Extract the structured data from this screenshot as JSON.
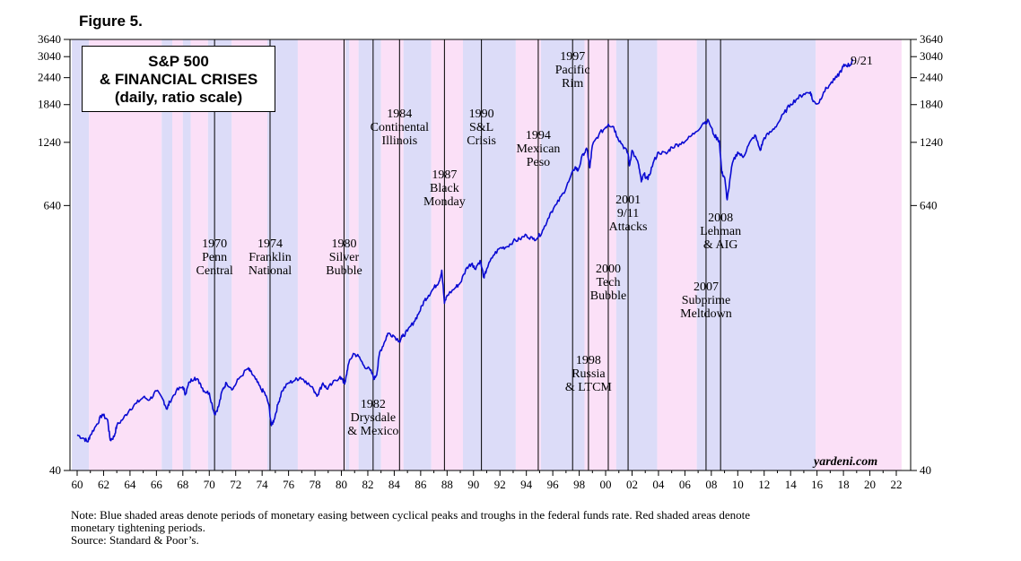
{
  "figure_label": "Figure 5.",
  "title_lines": [
    "S&P 500",
    "& FINANCIAL CRISES",
    "(daily, ratio scale)"
  ],
  "watermark": "yardeni.com",
  "last_label": "9/21",
  "notes": {
    "note_line1": "Note: Blue shaded areas denote periods of monetary easing between cyclical peaks and troughs in the federal funds rate. Red shaded areas denote",
    "note_line2": "monetary tightening periods.",
    "source": "Source: Standard & Poor’s."
  },
  "colors": {
    "easing": "#dcdcf8",
    "tightening": "#fbe0f7",
    "line": "#0a0ad2",
    "event_line": "#000000"
  },
  "chart_data": {
    "type": "line",
    "title": "S&P 500 & FINANCIAL CRISES",
    "subtitle": "(daily, ratio scale)",
    "y_scale": "log",
    "ylim": [
      40,
      3640
    ],
    "xlim": [
      1959.5,
      2022.4
    ],
    "y_ticks": [
      40,
      640,
      1240,
      1840,
      2440,
      3040,
      3640
    ],
    "x_tick_labels": [
      "60",
      "62",
      "64",
      "66",
      "68",
      "70",
      "72",
      "74",
      "76",
      "78",
      "80",
      "82",
      "84",
      "86",
      "88",
      "90",
      "92",
      "94",
      "96",
      "98",
      "00",
      "02",
      "04",
      "06",
      "08",
      "10",
      "12",
      "14",
      "16",
      "18",
      "20",
      "22"
    ],
    "x_tick_years": [
      1960,
      1962,
      1964,
      1966,
      1968,
      1970,
      1972,
      1974,
      1976,
      1978,
      1980,
      1982,
      1984,
      1986,
      1988,
      1990,
      1992,
      1994,
      1996,
      1998,
      2000,
      2002,
      2004,
      2006,
      2008,
      2010,
      2012,
      2014,
      2016,
      2018,
      2020,
      2022
    ],
    "periods": [
      {
        "type": "easing",
        "start": 1959.6,
        "end": 1960.9
      },
      {
        "type": "tightening",
        "start": 1960.9,
        "end": 1966.4
      },
      {
        "type": "easing",
        "start": 1966.4,
        "end": 1967.2
      },
      {
        "type": "tightening",
        "start": 1967.2,
        "end": 1968.0
      },
      {
        "type": "easing",
        "start": 1968.0,
        "end": 1968.6
      },
      {
        "type": "tightening",
        "start": 1968.6,
        "end": 1969.9
      },
      {
        "type": "easing",
        "start": 1969.9,
        "end": 1971.7
      },
      {
        "type": "tightening",
        "start": 1971.7,
        "end": 1974.4
      },
      {
        "type": "easing",
        "start": 1974.4,
        "end": 1976.7
      },
      {
        "type": "tightening",
        "start": 1976.7,
        "end": 1980.3
      },
      {
        "type": "easing",
        "start": 1980.3,
        "end": 1980.6
      },
      {
        "type": "tightening",
        "start": 1980.6,
        "end": 1981.3
      },
      {
        "type": "easing",
        "start": 1981.3,
        "end": 1983.0
      },
      {
        "type": "tightening",
        "start": 1983.0,
        "end": 1984.7
      },
      {
        "type": "easing",
        "start": 1984.7,
        "end": 1986.8
      },
      {
        "type": "tightening",
        "start": 1986.8,
        "end": 1989.2
      },
      {
        "type": "easing",
        "start": 1989.2,
        "end": 1993.2
      },
      {
        "type": "tightening",
        "start": 1993.2,
        "end": 1995.1
      },
      {
        "type": "easing",
        "start": 1995.1,
        "end": 1998.4
      },
      {
        "type": "tightening",
        "start": 1998.4,
        "end": 2000.8
      },
      {
        "type": "easing",
        "start": 2000.8,
        "end": 2003.9
      },
      {
        "type": "tightening",
        "start": 2003.9,
        "end": 2006.9
      },
      {
        "type": "easing",
        "start": 2006.9,
        "end": 2015.9
      },
      {
        "type": "tightening",
        "start": 2015.9,
        "end": 2022.4
      }
    ],
    "events": [
      {
        "year": 1970.4,
        "lines": [
          "1970",
          "Penn",
          "Central"
        ]
      },
      {
        "year": 1974.6,
        "lines": [
          "1974",
          "Franklin",
          "National"
        ]
      },
      {
        "year": 1980.2,
        "lines": [
          "1980",
          "Silver",
          "Bubble"
        ]
      },
      {
        "year": 1982.4,
        "lines": [
          "1982",
          "Drysdale",
          "& Mexico"
        ]
      },
      {
        "year": 1984.4,
        "lines": [
          "1984",
          "Continental",
          "Illinois"
        ]
      },
      {
        "year": 1987.8,
        "lines": [
          "1987",
          "Black",
          "Monday"
        ]
      },
      {
        "year": 1990.6,
        "lines": [
          "1990",
          "S&L",
          "Crisis"
        ]
      },
      {
        "year": 1994.9,
        "lines": [
          "1994",
          "Mexican",
          "Peso"
        ]
      },
      {
        "year": 1997.5,
        "lines": [
          "1997",
          "Pacific",
          "Rim"
        ]
      },
      {
        "year": 1998.7,
        "lines": [
          "1998",
          "Russia",
          "& LTCM"
        ]
      },
      {
        "year": 2000.2,
        "lines": [
          "2000",
          "Tech",
          "Bubble"
        ]
      },
      {
        "year": 2001.7,
        "lines": [
          "2001",
          "9/11",
          "Attacks"
        ]
      },
      {
        "year": 2007.6,
        "lines": [
          "2007",
          "Subprime",
          "Meltdown"
        ]
      },
      {
        "year": 2008.7,
        "lines": [
          "2008",
          "Lehman",
          "& AIG"
        ]
      }
    ],
    "series": [
      {
        "name": "S&P 500",
        "points": [
          [
            1960.0,
            58
          ],
          [
            1960.5,
            56
          ],
          [
            1960.8,
            54
          ],
          [
            1961.0,
            58
          ],
          [
            1961.5,
            65
          ],
          [
            1961.9,
            72
          ],
          [
            1962.3,
            68
          ],
          [
            1962.5,
            55
          ],
          [
            1962.8,
            57
          ],
          [
            1963.0,
            64
          ],
          [
            1963.5,
            69
          ],
          [
            1964.0,
            76
          ],
          [
            1964.5,
            81
          ],
          [
            1965.0,
            86
          ],
          [
            1965.5,
            84
          ],
          [
            1966.0,
            92
          ],
          [
            1966.5,
            84
          ],
          [
            1966.8,
            76
          ],
          [
            1967.0,
            82
          ],
          [
            1967.5,
            92
          ],
          [
            1968.0,
            96
          ],
          [
            1968.2,
            89
          ],
          [
            1968.5,
            101
          ],
          [
            1968.9,
            106
          ],
          [
            1969.3,
            100
          ],
          [
            1969.6,
            92
          ],
          [
            1970.0,
            90
          ],
          [
            1970.4,
            72
          ],
          [
            1970.7,
            78
          ],
          [
            1971.0,
            93
          ],
          [
            1971.3,
            100
          ],
          [
            1971.8,
            94
          ],
          [
            1972.2,
            104
          ],
          [
            1972.9,
            116
          ],
          [
            1973.1,
            113
          ],
          [
            1973.5,
            104
          ],
          [
            1973.9,
            94
          ],
          [
            1974.2,
            90
          ],
          [
            1974.5,
            80
          ],
          [
            1974.7,
            64
          ],
          [
            1974.9,
            68
          ],
          [
            1975.2,
            80
          ],
          [
            1975.5,
            92
          ],
          [
            1976.0,
            100
          ],
          [
            1976.5,
            103
          ],
          [
            1976.9,
            106
          ],
          [
            1977.3,
            102
          ],
          [
            1977.9,
            93
          ],
          [
            1978.2,
            88
          ],
          [
            1978.6,
            100
          ],
          [
            1978.9,
            94
          ],
          [
            1979.3,
            99
          ],
          [
            1979.9,
            107
          ],
          [
            1980.2,
            100
          ],
          [
            1980.3,
            101
          ],
          [
            1980.5,
            120
          ],
          [
            1980.9,
            136
          ],
          [
            1981.3,
            132
          ],
          [
            1981.7,
            120
          ],
          [
            1982.2,
            114
          ],
          [
            1982.5,
            104
          ],
          [
            1982.7,
            112
          ],
          [
            1982.9,
            138
          ],
          [
            1983.3,
            155
          ],
          [
            1983.5,
            168
          ],
          [
            1983.9,
            165
          ],
          [
            1984.4,
            155
          ],
          [
            1984.6,
            162
          ],
          [
            1985.0,
            172
          ],
          [
            1985.5,
            190
          ],
          [
            1985.9,
            210
          ],
          [
            1986.3,
            238
          ],
          [
            1986.6,
            250
          ],
          [
            1987.0,
            270
          ],
          [
            1987.4,
            290
          ],
          [
            1987.6,
            325
          ],
          [
            1987.8,
            230
          ],
          [
            1988.0,
            250
          ],
          [
            1988.6,
            270
          ],
          [
            1989.0,
            285
          ],
          [
            1989.5,
            335
          ],
          [
            1989.9,
            350
          ],
          [
            1990.1,
            330
          ],
          [
            1990.5,
            360
          ],
          [
            1990.8,
            300
          ],
          [
            1991.0,
            330
          ],
          [
            1991.5,
            380
          ],
          [
            1992.0,
            410
          ],
          [
            1992.5,
            415
          ],
          [
            1993.0,
            440
          ],
          [
            1993.5,
            450
          ],
          [
            1994.0,
            470
          ],
          [
            1994.5,
            450
          ],
          [
            1994.9,
            460
          ],
          [
            1995.3,
            500
          ],
          [
            1995.8,
            590
          ],
          [
            1996.3,
            650
          ],
          [
            1996.8,
            730
          ],
          [
            1997.2,
            820
          ],
          [
            1997.7,
            960
          ],
          [
            1997.9,
            920
          ],
          [
            1998.3,
            1100
          ],
          [
            1998.6,
            1150
          ],
          [
            1998.8,
            950
          ],
          [
            1999.0,
            1200
          ],
          [
            1999.5,
            1350
          ],
          [
            2000.0,
            1450
          ],
          [
            2000.2,
            1500
          ],
          [
            2000.6,
            1460
          ],
          [
            2000.9,
            1310
          ],
          [
            2001.3,
            1200
          ],
          [
            2001.7,
            1100
          ],
          [
            2001.8,
            970
          ],
          [
            2002.0,
            1140
          ],
          [
            2002.5,
            980
          ],
          [
            2002.7,
            820
          ],
          [
            2002.9,
            890
          ],
          [
            2003.2,
            840
          ],
          [
            2003.6,
            1000
          ],
          [
            2004.0,
            1120
          ],
          [
            2004.6,
            1100
          ],
          [
            2005.0,
            1180
          ],
          [
            2005.6,
            1220
          ],
          [
            2006.2,
            1280
          ],
          [
            2006.8,
            1380
          ],
          [
            2007.4,
            1520
          ],
          [
            2007.8,
            1550
          ],
          [
            2008.2,
            1340
          ],
          [
            2008.6,
            1260
          ],
          [
            2008.8,
            900
          ],
          [
            2009.0,
            860
          ],
          [
            2009.2,
            680
          ],
          [
            2009.6,
            1000
          ],
          [
            2010.0,
            1120
          ],
          [
            2010.4,
            1060
          ],
          [
            2010.8,
            1200
          ],
          [
            2011.3,
            1340
          ],
          [
            2011.7,
            1140
          ],
          [
            2012.0,
            1300
          ],
          [
            2012.5,
            1380
          ],
          [
            2013.0,
            1500
          ],
          [
            2013.5,
            1680
          ],
          [
            2014.0,
            1850
          ],
          [
            2014.5,
            1960
          ],
          [
            2015.0,
            2060
          ],
          [
            2015.5,
            2100
          ],
          [
            2015.7,
            1900
          ],
          [
            2016.1,
            1860
          ],
          [
            2016.5,
            2100
          ],
          [
            2017.0,
            2280
          ],
          [
            2017.5,
            2450
          ],
          [
            2017.9,
            2680
          ],
          [
            2018.1,
            2790
          ],
          [
            2018.5,
            2780
          ],
          [
            2018.7,
            2920
          ]
        ]
      }
    ]
  }
}
